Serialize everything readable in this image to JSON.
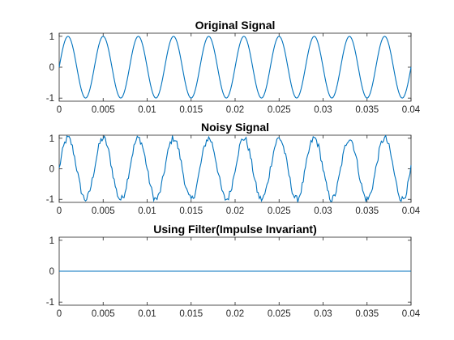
{
  "chart_data": [
    {
      "type": "line",
      "title": "Original Signal",
      "xlabel": "",
      "ylabel": "",
      "xlim": [
        0,
        0.04
      ],
      "ylim": [
        -1.1,
        1.1
      ],
      "x_ticks": [
        "0",
        "0.005",
        "0.01",
        "0.015",
        "0.02",
        "0.025",
        "0.03",
        "0.035",
        "0.04"
      ],
      "y_ticks": [
        "-1",
        "0",
        "1"
      ],
      "grid": false,
      "series": [
        {
          "frequency_hz": 250,
          "amplitude": 1,
          "sample_rate_hz": 8000,
          "x_start": 0,
          "x_end": 0.04,
          "noise_amplitude": 0,
          "color": "#0072bd"
        }
      ]
    },
    {
      "type": "line",
      "title": "Noisy Signal",
      "xlabel": "",
      "ylabel": "",
      "xlim": [
        0,
        0.04
      ],
      "ylim": [
        -1.1,
        1.1
      ],
      "x_ticks": [
        "0",
        "0.005",
        "0.01",
        "0.015",
        "0.02",
        "0.025",
        "0.03",
        "0.035",
        "0.04"
      ],
      "y_ticks": [
        "-1",
        "0",
        "1"
      ],
      "grid": false,
      "series": [
        {
          "frequency_hz": 250,
          "amplitude": 1,
          "sample_rate_hz": 8000,
          "x_start": 0,
          "x_end": 0.04,
          "noise_amplitude": 0.12,
          "color": "#0072bd"
        }
      ]
    },
    {
      "type": "line",
      "title": "Using Filter(Impulse Invariant)",
      "xlabel": "",
      "ylabel": "",
      "xlim": [
        0,
        0.04
      ],
      "ylim": [
        -1.1,
        1.1
      ],
      "x_ticks": [
        "0",
        "0.005",
        "0.01",
        "0.015",
        "0.02",
        "0.025",
        "0.03",
        "0.035",
        "0.04"
      ],
      "y_ticks": [
        "-1",
        "0",
        "1"
      ],
      "grid": false,
      "series": [
        {
          "x": [
            0,
            0.04
          ],
          "y": [
            0,
            0
          ],
          "color": "#0072bd"
        }
      ]
    }
  ]
}
